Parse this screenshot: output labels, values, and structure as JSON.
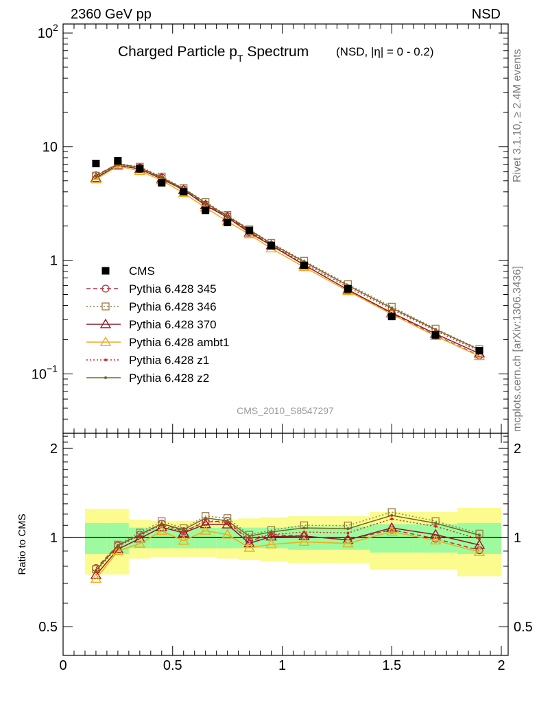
{
  "header": {
    "left": "2360 GeV pp",
    "right": "NSD"
  },
  "side_labels": {
    "rivet": "Rivet 3.1.10, ≥ 2.4M events",
    "mcplots": "mcplots.cern.ch [arXiv:1306.3436]"
  },
  "chart_data": {
    "type": "line",
    "title": "Charged Particle p_T Spectrum",
    "title_qualifier": "(NSD, |η| =   0 - 0.2)",
    "watermark": "CMS_2010_S8547297",
    "xlim": [
      0,
      2
    ],
    "ylim": [
      0.03,
      120
    ],
    "yscale": "log",
    "x_ticks": [
      "0",
      "0.5",
      "1",
      "1.5",
      "2"
    ],
    "y_ticks": [
      "10^-1",
      "1",
      "10",
      "10^2"
    ],
    "x": [
      0.15,
      0.25,
      0.35,
      0.45,
      0.55,
      0.65,
      0.75,
      0.85,
      0.95,
      1.1,
      1.3,
      1.5,
      1.7,
      1.9
    ],
    "data": {
      "name": "CMS",
      "values": [
        7.1,
        7.5,
        6.4,
        4.8,
        4.0,
        2.75,
        2.15,
        1.83,
        1.34,
        0.9,
        0.56,
        0.32,
        0.22,
        0.16
      ],
      "band_inner": [
        0.12,
        0.12,
        0.08,
        0.08,
        0.08,
        0.08,
        0.08,
        0.08,
        0.08,
        0.09,
        0.09,
        0.11,
        0.11,
        0.12
      ],
      "band_outer": [
        0.25,
        0.25,
        0.15,
        0.14,
        0.14,
        0.14,
        0.15,
        0.16,
        0.17,
        0.18,
        0.18,
        0.22,
        0.22,
        0.26
      ]
    },
    "series": [
      {
        "name": "Pythia 6.428 345",
        "color": "#b03545",
        "dash": "6,4",
        "marker": "circle",
        "values": [
          5.6,
          7.05,
          6.55,
          5.35,
          4.2,
          3.1,
          2.45,
          1.78,
          1.37,
          0.91,
          0.55,
          0.34,
          0.218,
          0.145
        ]
      },
      {
        "name": "Pythia 6.428 346",
        "color": "#9c7a45",
        "dash": "2,3",
        "marker": "square",
        "values": [
          5.55,
          7.1,
          6.65,
          5.45,
          4.3,
          3.25,
          2.5,
          1.87,
          1.42,
          0.99,
          0.615,
          0.39,
          0.25,
          0.165
        ]
      },
      {
        "name": "Pythia 6.428 370",
        "color": "#8e1a2c",
        "dash": "",
        "marker": "triangle",
        "values": [
          5.3,
          6.85,
          6.35,
          5.2,
          4.15,
          3.05,
          2.38,
          1.75,
          1.35,
          0.91,
          0.55,
          0.345,
          0.225,
          0.151
        ]
      },
      {
        "name": "Pythia 6.428 ambt1",
        "color": "#f2ac14",
        "dash": "",
        "marker": "triangle",
        "values": [
          5.15,
          6.75,
          6.1,
          5.05,
          3.9,
          2.9,
          2.2,
          1.69,
          1.27,
          0.87,
          0.535,
          0.335,
          0.215,
          0.143
        ]
      },
      {
        "name": "Pythia 6.428 z1",
        "color": "#e0211d",
        "dash": "2,3",
        "marker": "dot",
        "values": [
          5.45,
          7.0,
          6.5,
          5.3,
          4.15,
          3.15,
          2.4,
          1.82,
          1.37,
          0.94,
          0.58,
          0.37,
          0.24,
          0.158
        ]
      },
      {
        "name": "Pythia 6.428 z2",
        "color": "#6b6a22",
        "dash": "",
        "marker": "dot",
        "values": [
          5.5,
          7.05,
          6.55,
          5.35,
          4.25,
          3.2,
          2.45,
          1.85,
          1.4,
          0.97,
          0.6,
          0.38,
          0.246,
          0.163
        ]
      }
    ],
    "ratio": {
      "ylabel": "Ratio to CMS",
      "ylim": [
        0.4,
        2.25
      ],
      "yscale": "log",
      "y_ticks": [
        "0.5",
        "1",
        "2"
      ]
    }
  }
}
